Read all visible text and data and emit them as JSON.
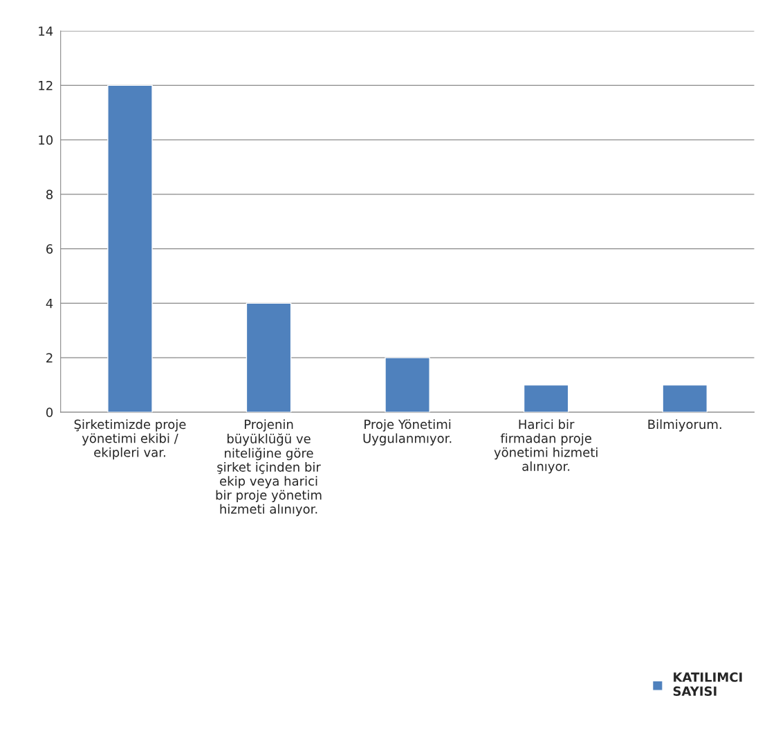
{
  "chart_data": {
    "type": "bar",
    "categories": [
      "Şirketimizde proje\nyönetimi ekibi /\nekipleri var.",
      "Projenin\nbüyüklüğü ve\nniteliğine göre\nşirket içinden bir\nekip veya harici\nbir proje yönetim\nhizmeti alınıyor.",
      "Proje Yönetimi\nUygulanmıyor.",
      "Harici bir\nfirmadan proje\nyönetimi hizmeti\nalınıyor.",
      "Bilmiyorum."
    ],
    "series": [
      {
        "name": "KATILIMCI\nSAYISI",
        "color": "#4f81bd",
        "values": [
          12,
          4,
          2,
          1,
          1
        ]
      }
    ],
    "ylim": [
      0,
      14
    ],
    "yticks": [
      0,
      2,
      4,
      6,
      8,
      10,
      12,
      14
    ],
    "grid": "y",
    "legend": "bottom right"
  }
}
